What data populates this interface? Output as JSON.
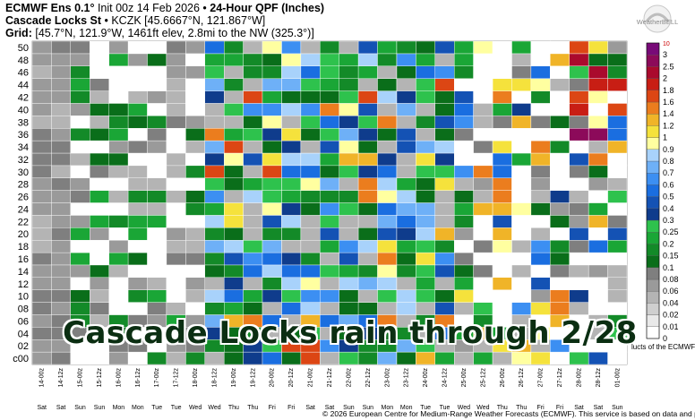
{
  "header": {
    "line1_prefix": "ECMWF Ens 0.1°",
    "line1_init": "Init 00z 14 Feb 2026",
    "line1_product": "24-Hour QPF (Inches)",
    "line2_station": "Cascade Locks St",
    "line2_meta": "KCZK [45.6667°N, 121.867°W]",
    "line3_label": "Grid:",
    "line3_meta": "[45.7°N, 121.9°W, 1461ft elev, 2.8mi to the NW (325.3°)]"
  },
  "logo_text": "WeatherBELL",
  "overlay_text": "Cascade Locks rain through 2/28",
  "footer_text": "© 2026 European Centre for Medium-Range Weather Forecasts (ECMWF). This service is based on data and prod",
  "tail_text": "lucts of the ECMWF.",
  "colors": {
    "gray": "#a0a0a0",
    "grid_line": "#ffffff"
  },
  "chart_data": {
    "type": "heatmap",
    "title": "24-Hour QPF (Inches)",
    "y_labels": [
      "c00",
      "02",
      "04",
      "06",
      "08",
      "10",
      "12",
      "14",
      "16",
      "18",
      "20",
      "22",
      "24",
      "26",
      "28",
      "30",
      "32",
      "34",
      "36",
      "38",
      "40",
      "42",
      "44",
      "46",
      "48",
      "50"
    ],
    "x_labels": [
      "14-00z",
      "14-12z",
      "15-00z",
      "15-12z",
      "16-00z",
      "16-12z",
      "17-00z",
      "17-12z",
      "18-00z",
      "18-12z",
      "19-00z",
      "19-12z",
      "20-00z",
      "20-12z",
      "21-00z",
      "21-12z",
      "22-00z",
      "22-12z",
      "23-00z",
      "23-12z",
      "24-00z",
      "24-12z",
      "25-00z",
      "25-12z",
      "26-00z",
      "26-12z",
      "27-00z",
      "27-12z",
      "28-00z",
      "28-12z",
      "01-00z"
    ],
    "day_labels": [
      "Sat",
      "Sat",
      "Sun",
      "Sun",
      "Mon",
      "Mon",
      "Tue",
      "Tue",
      "Wed",
      "Wed",
      "Thu",
      "Thu",
      "Fri",
      "Fri",
      "Sat",
      "Sat",
      "Sun",
      "Sun",
      "Mon",
      "Mon",
      "Tue",
      "Tue",
      "Wed",
      "Wed",
      "Thu",
      "Thu",
      "Fri",
      "Fri",
      "Sat",
      "Sat",
      "Sun"
    ],
    "colorbar": {
      "ticks": [
        "0",
        "0.01",
        "0.02",
        "0.04",
        "0.06",
        "0.08",
        "0.1",
        "0.15",
        "0.2",
        "0.25",
        "0.3",
        "0.4",
        "0.5",
        "0.6",
        "0.7",
        "0.8",
        "0.9",
        "1",
        "1.2",
        "1.4",
        "1.6",
        "1.8",
        "2",
        "2.5",
        "3"
      ],
      "top_label": "10",
      "colors": [
        "#ffffff",
        "#e9e9e9",
        "#cfcfcf",
        "#b4b4b4",
        "#9a9a9a",
        "#7f7f7f",
        "#0a6e1a",
        "#138a28",
        "#1aa636",
        "#2ec24d",
        "#0f3c8c",
        "#1452b4",
        "#1a6ee0",
        "#3c8ff2",
        "#6eb0f7",
        "#a8d2fb",
        "#ffffa0",
        "#f5e23c",
        "#f0b428",
        "#eb7d1e",
        "#dc4614",
        "#c81e14",
        "#aa0a2d",
        "#8c0a5a",
        "#780a78"
      ]
    }
  }
}
